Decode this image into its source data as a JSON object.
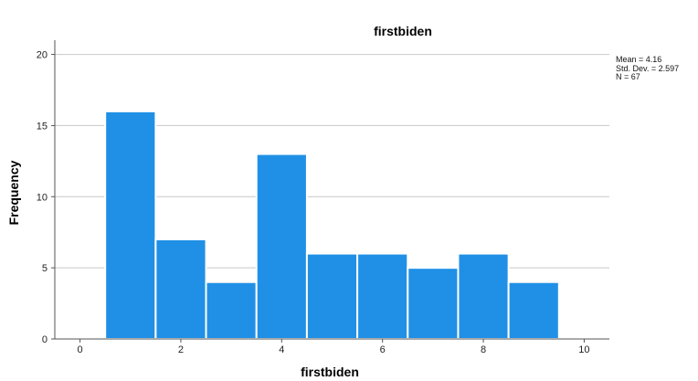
{
  "chart_data": {
    "type": "bar",
    "title": "firstbiden",
    "xlabel": "firstbiden",
    "ylabel": "Frequency",
    "xlim": [
      -0.5,
      10.5
    ],
    "ylim": [
      0,
      21
    ],
    "xticks": [
      0,
      2,
      4,
      6,
      8,
      10
    ],
    "yticks": [
      0,
      5,
      10,
      15,
      20
    ],
    "bin_width": 1,
    "bins": [
      {
        "x": 1,
        "value": 16
      },
      {
        "x": 2,
        "value": 7
      },
      {
        "x": 3,
        "value": 4
      },
      {
        "x": 4,
        "value": 13
      },
      {
        "x": 5,
        "value": 6
      },
      {
        "x": 6,
        "value": 6
      },
      {
        "x": 7,
        "value": 5
      },
      {
        "x": 8,
        "value": 6
      },
      {
        "x": 9,
        "value": 4
      }
    ],
    "bar_color": "#2090e6",
    "grid": "horizontal",
    "stats": {
      "mean": "Mean = 4.16",
      "std_dev": "Std. Dev. = 2.597",
      "n": "N = 67"
    }
  }
}
